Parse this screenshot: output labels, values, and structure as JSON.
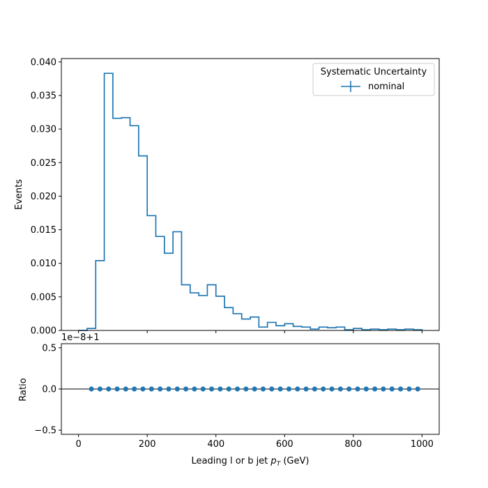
{
  "chart_data": [
    {
      "type": "step-histogram",
      "ylabel": "Events",
      "xlim": [
        -50,
        1050
      ],
      "ylim": [
        0,
        0.0405
      ],
      "yticks": [
        "0.000",
        "0.005",
        "0.010",
        "0.015",
        "0.020",
        "0.025",
        "0.030",
        "0.035",
        "0.040"
      ],
      "ytick_values": [
        0,
        0.005,
        0.01,
        0.015,
        0.02,
        0.025,
        0.03,
        0.035,
        0.04
      ],
      "bin_edges": [
        0,
        25,
        50,
        75,
        100,
        125,
        150,
        175,
        200,
        225,
        250,
        275,
        300,
        325,
        350,
        375,
        400,
        425,
        450,
        475,
        500,
        525,
        550,
        575,
        600,
        625,
        650,
        675,
        700,
        725,
        750,
        775,
        800,
        825,
        850,
        875,
        900,
        925,
        950,
        975,
        1000
      ],
      "series": [
        {
          "name": "nominal",
          "color": "#1f77b4",
          "values": [
            0.0,
            0.0003,
            0.0104,
            0.0383,
            0.0316,
            0.0317,
            0.0305,
            0.026,
            0.0171,
            0.014,
            0.0115,
            0.0147,
            0.0068,
            0.0056,
            0.0052,
            0.0068,
            0.0051,
            0.0034,
            0.0025,
            0.0017,
            0.002,
            0.0005,
            0.0012,
            0.0007,
            0.001,
            0.0006,
            0.0005,
            0.0002,
            0.0005,
            0.0004,
            0.0005,
            0.0001,
            0.0003,
            0.0001,
            0.0002,
            0.0001,
            0.0002,
            0.0001,
            0.0002,
            0.0001
          ]
        }
      ],
      "legend": {
        "title": "Systematic Uncertainty",
        "entries": [
          "nominal"
        ],
        "placement": "top-right"
      }
    },
    {
      "type": "scatter",
      "ylabel": "Ratio",
      "xlabel_prefix": "Leading l or b jet ",
      "xlabel_var": "p",
      "xlabel_sub": "T",
      "xlabel_suffix": " (GeV)",
      "offset_text": "1e−8+1",
      "xlim": [
        -50,
        1050
      ],
      "ylim": [
        -0.55,
        0.55
      ],
      "xticks": [
        "0",
        "200",
        "400",
        "600",
        "800",
        "1000"
      ],
      "xtick_values": [
        0,
        200,
        400,
        600,
        800,
        1000
      ],
      "yticks": [
        "−0.5",
        "0.0",
        "0.5"
      ],
      "ytick_values": [
        -0.5,
        0,
        0.5
      ],
      "reference_line": 0,
      "series": [
        {
          "name": "nominal",
          "color": "#1f77b4",
          "x": [
            37.5,
            62.5,
            87.5,
            112.5,
            137.5,
            162.5,
            187.5,
            212.5,
            237.5,
            262.5,
            287.5,
            312.5,
            337.5,
            362.5,
            387.5,
            412.5,
            437.5,
            462.5,
            487.5,
            512.5,
            537.5,
            562.5,
            587.5,
            612.5,
            637.5,
            662.5,
            687.5,
            712.5,
            737.5,
            762.5,
            787.5,
            812.5,
            837.5,
            862.5,
            887.5,
            912.5,
            937.5,
            962.5,
            987.5
          ],
          "y": [
            0,
            0,
            0,
            0,
            0,
            0,
            0,
            0,
            0,
            0,
            0,
            0,
            0,
            0,
            0,
            0,
            0,
            0,
            0,
            0,
            0,
            0,
            0,
            0,
            0,
            0,
            0,
            0,
            0,
            0,
            0,
            0,
            0,
            0,
            0,
            0,
            0,
            0,
            0
          ]
        }
      ]
    }
  ]
}
